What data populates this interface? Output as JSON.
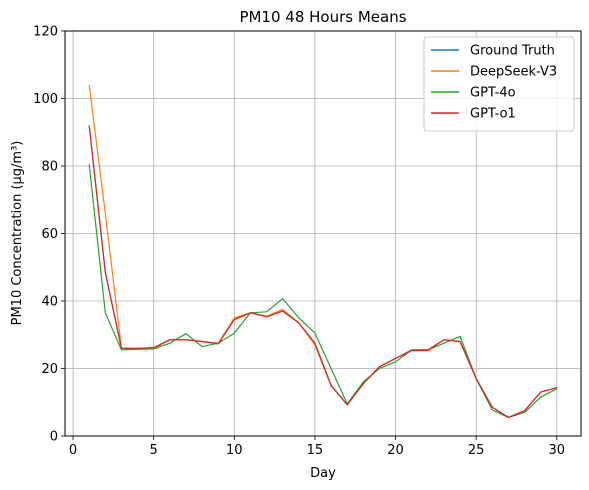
{
  "chart_data": {
    "type": "line",
    "title": "PM10 48 Hours Means",
    "xlabel": "Day",
    "ylabel": "PM10 Concentration (μg/m³)",
    "xlim": [
      -0.5,
      31.5
    ],
    "ylim": [
      0,
      120
    ],
    "xticks": [
      0,
      5,
      10,
      15,
      20,
      25,
      30
    ],
    "yticks": [
      0,
      20,
      40,
      60,
      80,
      100,
      120
    ],
    "grid": true,
    "legend_position": "top-right",
    "x": [
      1,
      2,
      3,
      4,
      5,
      6,
      7,
      8,
      9,
      10,
      11,
      12,
      13,
      14,
      15,
      16,
      17,
      18,
      19,
      20,
      21,
      22,
      23,
      24,
      25,
      26,
      27,
      28,
      29,
      30
    ],
    "series": [
      {
        "name": "Ground Truth",
        "color": "#1f77b4",
        "values": [
          92,
          48.5,
          26,
          26,
          26,
          28.5,
          28.5,
          28,
          27.5,
          34.5,
          36.5,
          35.5,
          37,
          33.5,
          27.5,
          15,
          9.3,
          15.5,
          20.5,
          23,
          25.5,
          25.5,
          28.5,
          28,
          17,
          8.5,
          5.5,
          7.5,
          13,
          14.3
        ]
      },
      {
        "name": "DeepSeek-V3",
        "color": "#ff7f0e",
        "values": [
          104,
          66,
          26,
          26,
          26,
          28.5,
          28.5,
          28,
          27.5,
          35,
          36.5,
          35.5,
          37.5,
          33.5,
          27,
          14.8,
          9.3,
          15.5,
          20.5,
          23,
          25.5,
          25.5,
          28.5,
          28,
          17,
          8.5,
          5.5,
          7.5,
          13,
          14.3
        ]
      },
      {
        "name": "GPT-4o",
        "color": "#2ca02c",
        "values": [
          80.5,
          36.5,
          25.5,
          25.7,
          25.8,
          27.5,
          30.3,
          26.5,
          27.5,
          30.5,
          36.5,
          36.8,
          40.7,
          35,
          30.5,
          20,
          9.5,
          16,
          20,
          22,
          25.5,
          25.5,
          27.5,
          29.5,
          17,
          7.7,
          5.5,
          7,
          11.5,
          14
        ]
      },
      {
        "name": "GPT-o1",
        "color": "#d62728",
        "values": [
          92,
          48.5,
          26,
          26,
          26.2,
          28.5,
          28.5,
          28,
          27.3,
          34.5,
          36.5,
          35.3,
          37,
          33.5,
          27.5,
          15,
          9.2,
          15.5,
          20.5,
          23,
          25.3,
          25.3,
          28.5,
          28,
          17,
          8.5,
          5.5,
          7.5,
          13,
          14.3
        ]
      }
    ]
  }
}
